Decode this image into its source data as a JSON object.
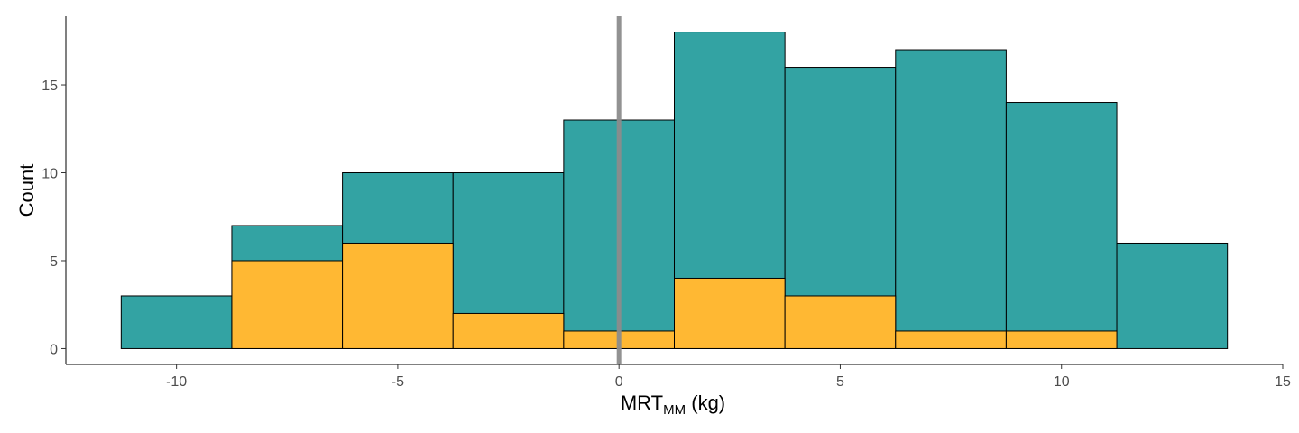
{
  "chart_data": {
    "type": "bar",
    "subtype": "stacked-histogram",
    "bins": [
      {
        "x_start": -11.25,
        "x_end": -8.75,
        "total": 3,
        "highlighted": 0
      },
      {
        "x_start": -8.75,
        "x_end": -6.25,
        "total": 7,
        "highlighted": 5
      },
      {
        "x_start": -6.25,
        "x_end": -3.75,
        "total": 10,
        "highlighted": 6
      },
      {
        "x_start": -3.75,
        "x_end": -1.25,
        "total": 10,
        "highlighted": 2
      },
      {
        "x_start": -1.25,
        "x_end": 1.25,
        "total": 13,
        "highlighted": 1
      },
      {
        "x_start": 1.25,
        "x_end": 3.75,
        "total": 18,
        "highlighted": 4
      },
      {
        "x_start": 3.75,
        "x_end": 6.25,
        "total": 16,
        "highlighted": 3
      },
      {
        "x_start": 6.25,
        "x_end": 8.75,
        "total": 17,
        "highlighted": 1
      },
      {
        "x_start": 8.75,
        "x_end": 11.25,
        "total": 14,
        "highlighted": 1
      },
      {
        "x_start": 11.25,
        "x_end": 13.75,
        "total": 6,
        "highlighted": 0
      }
    ],
    "xlabel_main": "MRT",
    "xlabel_sub": "MM",
    "xlabel_unit": " (kg)",
    "ylabel": "Count",
    "xlim": [
      -12.5,
      15
    ],
    "ylim": [
      -0.9,
      18.9
    ],
    "x_ticks": [
      -10,
      -5,
      0,
      5,
      10,
      15
    ],
    "x_tick_labels": [
      "-10",
      "-5",
      "0",
      "5",
      "10",
      "15"
    ],
    "y_ticks": [
      0,
      5,
      10,
      15
    ],
    "y_tick_labels": [
      "0",
      "5",
      "10",
      "15"
    ],
    "reference_line_x": 0,
    "grid": false,
    "colors": {
      "total": "#33A3A3",
      "highlighted": "#FFB833",
      "reference_line": "#8C8C8C"
    }
  }
}
